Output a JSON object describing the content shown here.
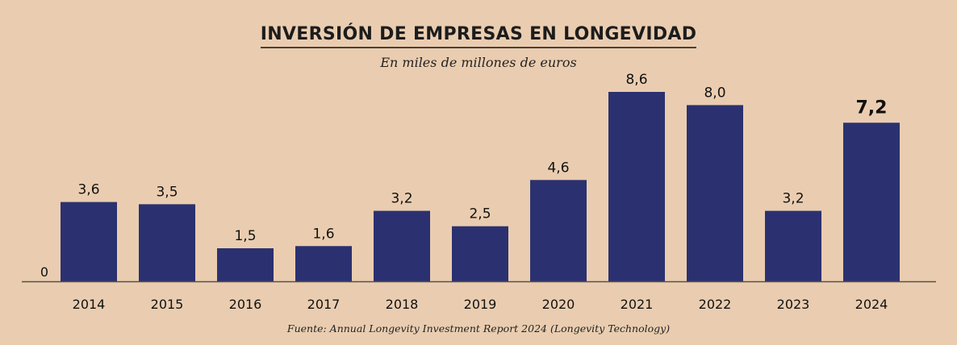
{
  "chart_data": {
    "type": "bar",
    "title": "INVERSIÓN DE EMPRESAS EN LONGEVIDAD",
    "subtitle": "En miles de millones de euros",
    "source": "Fuente: Annual Longevity Investment Report 2024 (Longevity Technology)",
    "xlabel": "",
    "ylabel": "",
    "ylim": [
      0,
      8.6
    ],
    "baseline_label": "0",
    "categories": [
      "2014",
      "2015",
      "2016",
      "2017",
      "2018",
      "2019",
      "2020",
      "2021",
      "2022",
      "2023",
      "2024"
    ],
    "values": [
      3.6,
      3.5,
      1.5,
      1.6,
      3.2,
      2.5,
      4.6,
      8.6,
      8.0,
      3.2,
      7.2
    ],
    "value_labels": [
      "3,6",
      "3,5",
      "1,5",
      "1,6",
      "3,2",
      "2,5",
      "4,6",
      "8,6",
      "8,0",
      "3,2",
      "7,2"
    ],
    "highlight_index": 10,
    "grid": false,
    "colors": {
      "bar": "#2b3170",
      "background": "#eacdb0",
      "axis": "#5a5048"
    }
  }
}
